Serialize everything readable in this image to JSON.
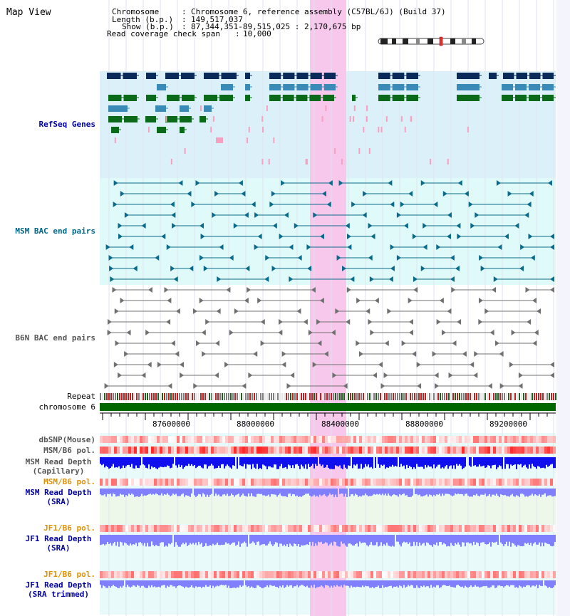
{
  "title": "Map View",
  "header": {
    "chromosome_label": "Chromosome",
    "chromosome_value": "Chromosome 6, reference assembly (C57BL/6J) (Build 37)",
    "length_label": "Length (b.p.)",
    "length_value": "149,517,037",
    "show_label": "Show (b.p.)",
    "show_value": "87,344,351-89,515,025 : 2,170,675 bp",
    "coverage_label": "Read coverage check span",
    "coverage_value": "10,000"
  },
  "tracks": {
    "refseq": "RefSeq Genes",
    "msm_bac": "MSM BAC end pairs",
    "b6n_bac": "B6N BAC end pairs",
    "repeat": "Repeat",
    "chromosome": "chromosome 6",
    "dbsnp": "dbSNP(Mouse)",
    "msm_b6_pol_1": "MSM/B6 pol.",
    "msm_read_depth_cap_1": "MSM Read Depth",
    "msm_read_depth_cap_2": "(Capillary)",
    "msm_b6_pol_2": "MSM/B6 pol.",
    "msm_read_depth_sra_1": "MSM Read Depth",
    "msm_read_depth_sra_2": "(SRA)",
    "jf1_b6_pol_1": "JF1/B6 pol.",
    "jf1_read_depth_sra_1": "JF1 Read Depth",
    "jf1_read_depth_sra_2": "(SRA)",
    "jf1_b6_pol_2": "JF1/B6 pol.",
    "jf1_read_depth_trim_1": "JF1 Read Depth",
    "jf1_read_depth_trim_2": "(SRA trimmed)"
  },
  "axis": {
    "ticks": [
      "87600000",
      "88000000",
      "88400000",
      "88800000",
      "89200000"
    ]
  },
  "colors": {
    "highlight": "#f8c8ec",
    "refseq_bg": "#dcf0fa",
    "msm_bg": "#e0fafa",
    "navy": "#0a2a5a",
    "steel": "#3a8ab8",
    "green": "#0a6a1a",
    "pink": "#f8a0c0",
    "teal": "#0a6a8a",
    "gray": "#707070",
    "chrom": "#006600",
    "depth_dark": "#1010ee",
    "depth_light": "#8080ff"
  }
}
